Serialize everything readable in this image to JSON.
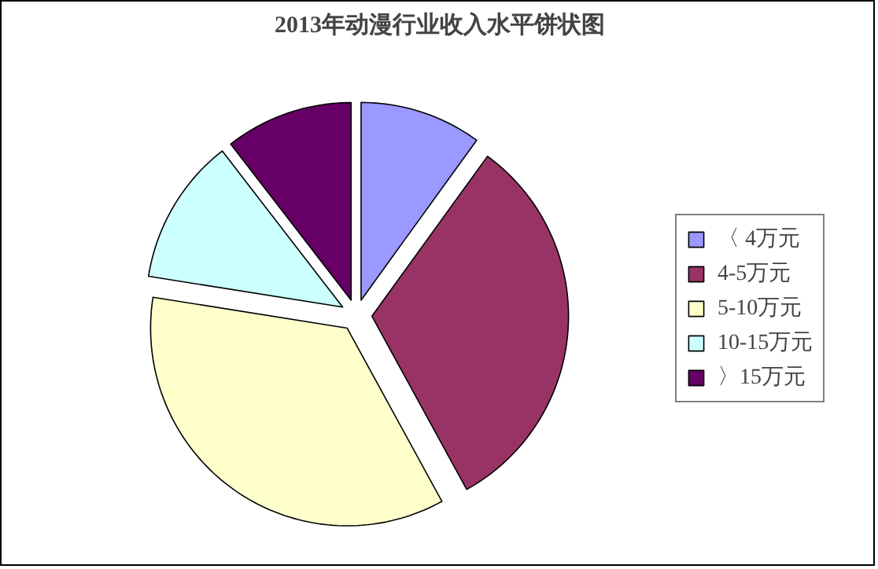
{
  "chart_data": {
    "type": "pie",
    "title": "2013年动漫行业收入水平饼状图",
    "categories": [
      "〈 4万元",
      "4-5万元",
      "5-10万元",
      "10-15万元",
      "〉15万元"
    ],
    "values": [
      10,
      32,
      35.5,
      12,
      10.5
    ],
    "colors": [
      "#9999ff",
      "#993366",
      "#ffffcc",
      "#ccffff",
      "#660066"
    ],
    "legend": "right"
  }
}
